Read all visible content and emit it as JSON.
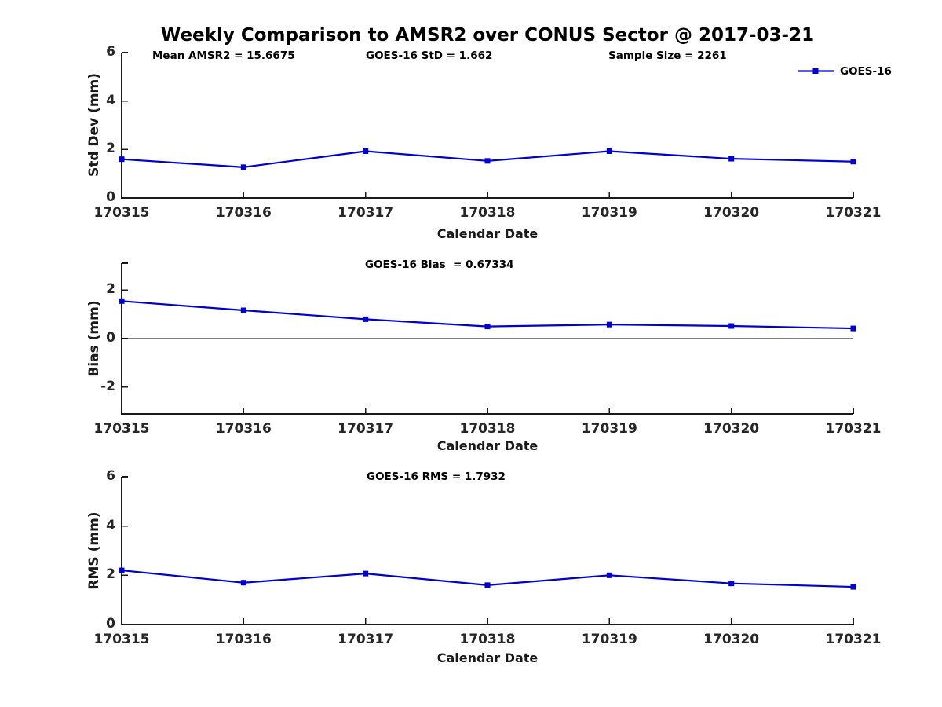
{
  "figure": {
    "title": "Weekly Comparison to AMSR2 over CONUS Sector @ 2017-03-21",
    "background": "#ffffff"
  },
  "colors": {
    "series_line": "#0000cc",
    "axis": "#1a1a1a",
    "tick_text": "#262626",
    "zero_line": "#000000"
  },
  "legend": {
    "label": "GOES-16",
    "position": "top-right",
    "boxed": false
  },
  "chart_data": [
    {
      "type": "line",
      "panel": "std-dev",
      "title": "Weekly Comparison to AMSR2 over CONUS Sector @ 2017-03-21",
      "annotations": [
        "Mean AMSR2 = 15.6675",
        "GOES-16 StD = 1.662",
        "Sample Size = 2261"
      ],
      "xlabel": "Calendar Date",
      "ylabel": "Std Dev (mm)",
      "x": [
        "170315",
        "170316",
        "170317",
        "170318",
        "170319",
        "170320",
        "170321"
      ],
      "series": [
        {
          "name": "GOES-16",
          "values": [
            1.6,
            1.27,
            1.93,
            1.53,
            1.93,
            1.62,
            1.5
          ]
        }
      ],
      "ylim": [
        0,
        6
      ],
      "yticks": [
        0,
        2,
        4,
        6
      ],
      "zero_line": false,
      "grid": false,
      "legend_entries": [
        "GOES-16"
      ]
    },
    {
      "type": "line",
      "panel": "bias",
      "title": "GOES-16 Bias  = 0.67334",
      "xlabel": "Calendar Date",
      "ylabel": "Bias (mm)",
      "x": [
        "170315",
        "170316",
        "170317",
        "170318",
        "170319",
        "170320",
        "170321"
      ],
      "series": [
        {
          "name": "GOES-16",
          "values": [
            1.55,
            1.17,
            0.8,
            0.5,
            0.58,
            0.52,
            0.42
          ]
        }
      ],
      "ylim": [
        -3.12,
        3.12
      ],
      "yticks": [
        2,
        0,
        -2
      ],
      "zero_line": true,
      "grid": false,
      "legend_entries": []
    },
    {
      "type": "line",
      "panel": "rms",
      "title": "GOES-16 RMS = 1.7932",
      "xlabel": "Calendar Date",
      "ylabel": "RMS (mm)",
      "x": [
        "170315",
        "170316",
        "170317",
        "170318",
        "170319",
        "170320",
        "170321"
      ],
      "series": [
        {
          "name": "GOES-16",
          "values": [
            2.2,
            1.7,
            2.07,
            1.6,
            2.0,
            1.67,
            1.53
          ]
        }
      ],
      "ylim": [
        0,
        6
      ],
      "yticks": [
        0,
        2,
        4,
        6
      ],
      "zero_line": false,
      "grid": false,
      "legend_entries": []
    }
  ]
}
